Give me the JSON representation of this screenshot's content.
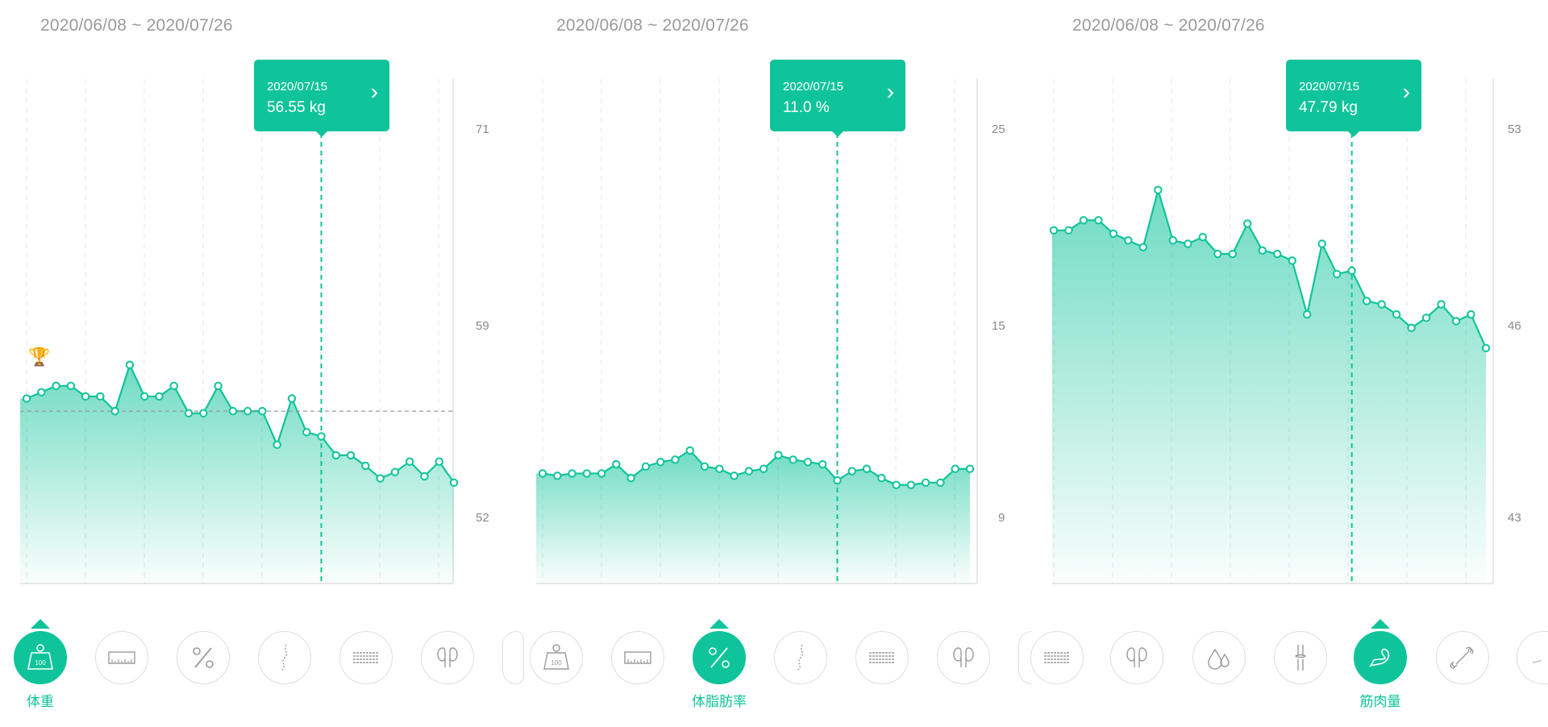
{
  "colors": {
    "accent": "#0fc49a",
    "grid": "#e4e4e4",
    "axis": "#d0d0d0",
    "target": "#9a9a9a"
  },
  "panels": [
    {
      "date_range": "2020/06/08 ~ 2020/07/26",
      "tooltip": {
        "date": "2020/07/15",
        "value": "56.55 kg"
      },
      "y_ticks": [
        "71",
        "59",
        "52"
      ],
      "active_label": "体重",
      "trophy": "🏆",
      "icons": [
        "weight-icon",
        "ruler-icon",
        "percent-icon",
        "spine-icon",
        "muscle-fiber-icon",
        "kidney-icon",
        "partial-icon"
      ]
    },
    {
      "date_range": "2020/06/08 ~ 2020/07/26",
      "tooltip": {
        "date": "2020/07/15",
        "value": "11.0 %"
      },
      "y_ticks": [
        "25",
        "15",
        "9"
      ],
      "active_label": "体脂肪率",
      "icons": [
        "partial-icon",
        "weight-icon",
        "ruler-icon",
        "percent-icon",
        "spine-icon",
        "muscle-fiber-icon",
        "kidney-icon",
        "partial-icon"
      ]
    },
    {
      "date_range": "2020/06/08 ~ 2020/07/26",
      "tooltip": {
        "date": "2020/07/15",
        "value": "47.79 kg"
      },
      "y_ticks": [
        "53",
        "46",
        "43"
      ],
      "active_label": "筋肉量",
      "icons": [
        "muscle-fiber-icon",
        "kidney-icon",
        "water-drop-icon",
        "joint-icon",
        "arm-muscle-icon",
        "bone-icon",
        "partial-icon"
      ]
    }
  ],
  "chart_data": [
    {
      "type": "area",
      "title": "",
      "ylim": [
        49,
        73
      ],
      "selected_x": "2020/07/15",
      "target": 57.2,
      "y": [
        57.8,
        58.1,
        58.4,
        58.4,
        57.9,
        57.9,
        57.2,
        59.4,
        57.9,
        57.9,
        58.4,
        57.1,
        57.1,
        58.4,
        57.2,
        57.2,
        57.2,
        55.6,
        57.8,
        56.2,
        56.0,
        55.1,
        55.1,
        54.6,
        54.0,
        54.3,
        54.8,
        54.1,
        54.8,
        53.8
      ]
    },
    {
      "type": "area",
      "title": "",
      "ylim": [
        6,
        28
      ],
      "selected_x": "2020/07/15",
      "y": [
        10.8,
        10.7,
        10.8,
        10.8,
        10.8,
        11.2,
        10.6,
        11.1,
        11.3,
        11.4,
        11.8,
        11.1,
        11.0,
        10.7,
        10.9,
        11.0,
        11.6,
        11.4,
        11.3,
        11.2,
        10.5,
        10.9,
        11.0,
        10.6,
        10.3,
        10.3,
        10.4,
        10.4,
        11.0,
        11.0
      ]
    },
    {
      "type": "area",
      "title": "",
      "ylim": [
        40,
        55
      ],
      "selected_x": "2020/07/15",
      "y": [
        50.5,
        50.5,
        50.8,
        50.8,
        50.4,
        50.2,
        50.0,
        51.7,
        50.2,
        50.1,
        50.3,
        49.8,
        49.8,
        50.7,
        49.9,
        49.8,
        49.6,
        48.0,
        50.1,
        49.2,
        49.3,
        48.4,
        48.3,
        48.0,
        47.6,
        47.9,
        48.3,
        47.8,
        48.0,
        47.0
      ]
    }
  ]
}
